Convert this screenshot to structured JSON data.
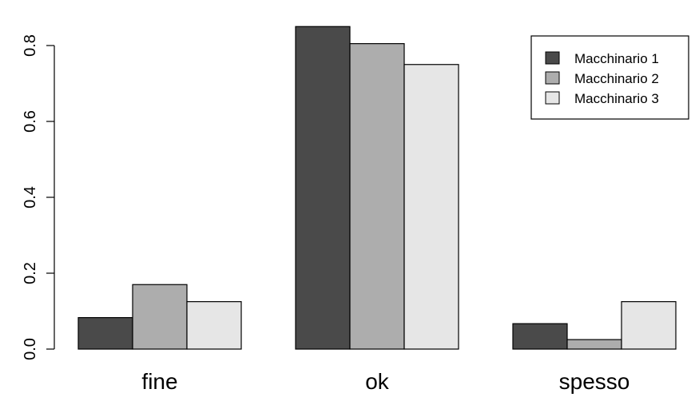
{
  "chart_data": {
    "type": "bar",
    "title": "",
    "xlabel": "",
    "ylabel": "",
    "categories": [
      "fine",
      "ok",
      "spesso"
    ],
    "series": [
      {
        "name": "Macchinario 1",
        "color": "#4a4a4a",
        "values": [
          0.083,
          0.85,
          0.067
        ]
      },
      {
        "name": "Macchinario 2",
        "color": "#adadad",
        "values": [
          0.17,
          0.805,
          0.025
        ]
      },
      {
        "name": "Macchinario 3",
        "color": "#e6e6e6",
        "values": [
          0.125,
          0.75,
          0.125
        ]
      }
    ],
    "yticks": [
      "0.0",
      "0.2",
      "0.4",
      "0.6",
      "0.8"
    ],
    "ylim": [
      0,
      0.85
    ],
    "grid": false,
    "legend_position": "top-right"
  }
}
